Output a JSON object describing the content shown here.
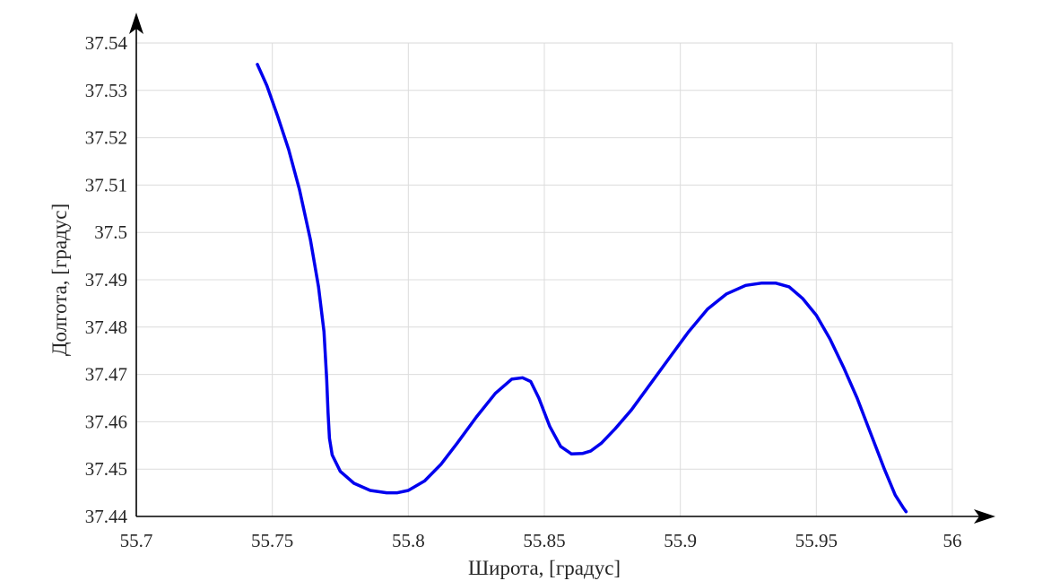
{
  "chart_data": {
    "type": "line",
    "xlabel": "Широта, [градус]",
    "ylabel": "Долгота, [градус]",
    "xlim": [
      55.7,
      56.0
    ],
    "ylim": [
      37.44,
      37.54
    ],
    "x_ticks": [
      "55.7",
      "55.75",
      "55.8",
      "55.85",
      "55.9",
      "55.95",
      "56"
    ],
    "y_ticks": [
      "37.44",
      "37.45",
      "37.46",
      "37.47",
      "37.48",
      "37.49",
      "37.5",
      "37.51",
      "37.52",
      "37.53",
      "37.54"
    ],
    "grid": true,
    "line_color": "#0000ee",
    "series": [
      {
        "x": [
          55.7445,
          55.748,
          55.752,
          55.756,
          55.76,
          55.764,
          55.767,
          55.769,
          55.77,
          55.7705,
          55.771,
          55.772,
          55.775,
          55.78,
          55.786,
          55.792,
          55.796,
          55.8,
          55.806,
          55.812,
          55.818,
          55.825,
          55.832,
          55.838,
          55.842,
          55.845,
          55.848,
          55.852,
          55.856,
          55.86,
          55.864,
          55.867,
          55.871,
          55.876,
          55.882,
          55.889,
          55.896,
          55.903,
          55.91,
          55.917,
          55.924,
          55.93,
          55.935,
          55.94,
          55.945,
          55.95,
          55.955,
          55.96,
          55.965,
          55.97,
          55.975,
          55.979,
          55.982,
          55.983
        ],
        "y": [
          37.5355,
          37.531,
          37.5245,
          37.5175,
          37.509,
          37.4985,
          37.4885,
          37.479,
          37.469,
          37.462,
          37.4565,
          37.453,
          37.4495,
          37.447,
          37.4455,
          37.445,
          37.445,
          37.4455,
          37.4475,
          37.451,
          37.4555,
          37.461,
          37.466,
          37.469,
          37.4693,
          37.4685,
          37.465,
          37.459,
          37.4548,
          37.4532,
          37.4533,
          37.4538,
          37.4555,
          37.4585,
          37.4625,
          37.468,
          37.4735,
          37.479,
          37.4838,
          37.487,
          37.4888,
          37.4893,
          37.4893,
          37.4885,
          37.486,
          37.4825,
          37.4775,
          37.4715,
          37.465,
          37.4575,
          37.45,
          37.4445,
          37.4418,
          37.441
        ]
      }
    ]
  }
}
